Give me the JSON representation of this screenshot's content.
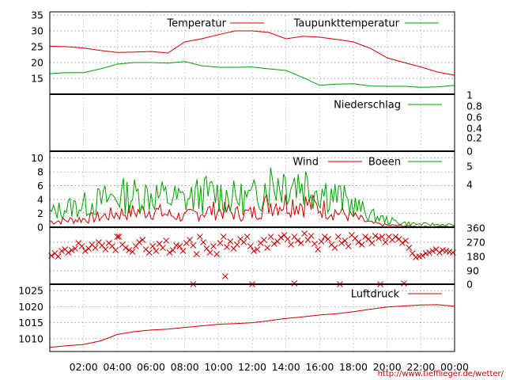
{
  "source_url": "http://www.tiefflieger.de/wetter/",
  "colors": {
    "red": "#cc0000",
    "green": "#00a000",
    "grid": "#777777",
    "frame": "#000000"
  },
  "x_ticks": [
    "02:00",
    "04:00",
    "06:00",
    "08:00",
    "10:00",
    "12:00",
    "14:00",
    "16:00",
    "18:00",
    "20:00",
    "22:00",
    "00:00"
  ],
  "chart_data": [
    {
      "type": "line",
      "x_range": [
        "00:00",
        "24:00"
      ],
      "ylim": [
        10,
        36
      ],
      "y_ticks": [
        15,
        20,
        25,
        30,
        35
      ],
      "grid": true,
      "legend_position": "top",
      "series": [
        {
          "name": "Temperatur",
          "color": "#cc0000",
          "x": [
            0,
            1,
            2,
            3,
            4,
            5,
            6,
            7,
            8,
            9,
            10,
            11,
            12,
            13,
            14,
            15,
            16,
            17,
            18,
            19,
            20,
            21,
            22,
            23,
            24
          ],
          "values": [
            25.2,
            25.0,
            24.6,
            23.8,
            23.2,
            23.3,
            23.5,
            23.0,
            26.5,
            27.5,
            28.8,
            30.0,
            30.0,
            29.5,
            27.5,
            28.3,
            28.0,
            27.3,
            26.5,
            24.5,
            21.5,
            20.0,
            18.6,
            17.0,
            16.0
          ]
        },
        {
          "name": "Taupunkttemperatur",
          "color": "#00a000",
          "x": [
            0,
            1,
            2,
            3,
            4,
            5,
            6,
            7,
            8,
            9,
            10,
            11,
            12,
            13,
            14,
            15,
            16,
            17,
            18,
            19,
            20,
            21,
            22,
            23,
            24
          ],
          "values": [
            16.5,
            16.8,
            16.8,
            18.0,
            19.5,
            20.0,
            20.0,
            19.8,
            20.3,
            19.0,
            18.5,
            18.5,
            18.6,
            18.0,
            17.5,
            15.3,
            12.8,
            13.2,
            13.3,
            12.6,
            12.5,
            12.5,
            12.2,
            12.3,
            12.8
          ]
        }
      ]
    },
    {
      "type": "line",
      "x_range": [
        "00:00",
        "24:00"
      ],
      "ylim": [
        0,
        1
      ],
      "y_ticks": [
        0,
        0.2,
        0.4,
        0.6,
        0.8,
        1
      ],
      "y_tick_labels": [
        "0",
        "0.2",
        "0.4",
        "0.6",
        "0.8",
        "1"
      ],
      "legend_position": "top",
      "series": [
        {
          "name": "Niederschlag",
          "color": "#00a000",
          "x": [
            0,
            24
          ],
          "values": [
            0,
            0
          ]
        }
      ]
    },
    {
      "type": "line",
      "x_range": [
        "00:00",
        "24:00"
      ],
      "ylim": [
        0,
        11
      ],
      "y_ticks": [
        0,
        2,
        4,
        6,
        8,
        10
      ],
      "right_ticks": [
        4,
        5
      ],
      "grid": true,
      "legend_position": "top",
      "series": [
        {
          "name": "Wind",
          "color": "#cc0000",
          "x": [
            0,
            1,
            2,
            3,
            4,
            5,
            6,
            7,
            8,
            9,
            10,
            11,
            12,
            13,
            14,
            15,
            16,
            17,
            18,
            19,
            20,
            21,
            22,
            23,
            24
          ],
          "values": [
            0.8,
            1.0,
            1.2,
            1.5,
            2.0,
            2.2,
            2.5,
            1.8,
            1.5,
            2.2,
            2.5,
            2.0,
            2.0,
            3.5,
            3.5,
            3.5,
            2.8,
            2.2,
            1.5,
            0.6,
            0.3,
            0.2,
            0.1,
            0.1,
            0.1
          ]
        },
        {
          "name": "Boeen",
          "color": "#00a000",
          "x": [
            0,
            1,
            2,
            3,
            4,
            5,
            6,
            7,
            8,
            9,
            10,
            11,
            12,
            13,
            14,
            15,
            16,
            17,
            18,
            19,
            20,
            21,
            22,
            23,
            24
          ],
          "values": [
            2.0,
            2.8,
            3.2,
            3.8,
            4.5,
            4.6,
            4.8,
            4.2,
            4.0,
            4.8,
            4.8,
            4.2,
            4.2,
            6.5,
            6.8,
            6.5,
            5.5,
            4.5,
            3.2,
            1.8,
            1.0,
            0.6,
            0.4,
            0.4,
            0.3
          ]
        }
      ]
    },
    {
      "type": "scatter",
      "x_range": [
        "00:00",
        "24:00"
      ],
      "ylim": [
        0,
        360
      ],
      "right_ticks": [
        0,
        90,
        180,
        270,
        360
      ],
      "grid": true,
      "series": [
        {
          "name": "",
          "color": "#cc0000",
          "x": [
            0.1,
            0.3,
            0.5,
            0.7,
            0.9,
            1.1,
            1.3,
            1.5,
            1.7,
            1.9,
            2.1,
            2.3,
            2.5,
            2.7,
            2.9,
            3.1,
            3.3,
            3.5,
            3.7,
            3.9,
            4.1,
            4.3,
            4.5,
            4.7,
            4.9,
            5.1,
            5.3,
            5.5,
            5.7,
            5.9,
            6.1,
            6.3,
            6.5,
            6.7,
            6.9,
            7.1,
            7.3,
            7.5,
            7.7,
            7.9,
            8.1,
            8.3,
            8.5,
            8.7,
            8.9,
            9.1,
            9.3,
            9.5,
            9.7,
            9.9,
            10.1,
            10.3,
            10.5,
            10.7,
            10.9,
            11.1,
            11.3,
            11.5,
            11.7,
            11.9,
            12.1,
            12.3,
            12.5,
            12.7,
            12.9,
            13.1,
            13.3,
            13.5,
            13.7,
            13.9,
            14.1,
            14.3,
            14.5,
            14.7,
            14.9,
            15.1,
            15.3,
            15.5,
            15.7,
            15.9,
            16.1,
            16.3,
            16.5,
            16.7,
            16.9,
            17.1,
            17.3,
            17.5,
            17.7,
            17.9,
            18.1,
            18.3,
            18.5,
            18.7,
            18.9,
            19.1,
            19.3,
            19.5,
            19.7,
            19.9,
            20.1,
            20.3,
            20.5,
            20.7,
            20.9,
            21.1,
            21.3,
            21.5,
            21.7,
            21.9,
            22.1,
            22.3,
            22.5,
            22.7,
            22.9,
            23.1,
            23.3,
            23.5,
            23.7,
            23.9,
            4.0,
            8.5,
            10.4,
            12.0,
            14.5,
            17.2,
            19.6,
            21.0
          ],
          "values": [
            180,
            195,
            175,
            210,
            220,
            200,
            215,
            225,
            260,
            240,
            210,
            225,
            250,
            230,
            265,
            245,
            220,
            260,
            240,
            215,
            300,
            250,
            230,
            215,
            205,
            240,
            265,
            280,
            220,
            200,
            240,
            210,
            255,
            230,
            275,
            200,
            215,
            245,
            240,
            210,
            260,
            280,
            245,
            190,
            300,
            265,
            225,
            200,
            240,
            190,
            260,
            300,
            235,
            270,
            225,
            250,
            285,
            265,
            300,
            240,
            210,
            220,
            260,
            280,
            230,
            300,
            255,
            270,
            295,
            310,
            285,
            250,
            300,
            275,
            260,
            320,
            280,
            305,
            255,
            220,
            270,
            300,
            285,
            250,
            230,
            300,
            260,
            275,
            240,
            310,
            290,
            265,
            250,
            300,
            285,
            260,
            305,
            290,
            300,
            265,
            300,
            280,
            300,
            285,
            260,
            275,
            230,
            195,
            170,
            175,
            180,
            195,
            200,
            210,
            220,
            200,
            215,
            210,
            205,
            200,
            300,
            0,
            50,
            0,
            5,
            0,
            0,
            5
          ]
        }
      ]
    },
    {
      "type": "line",
      "x_range": [
        "00:00",
        "24:00"
      ],
      "ylim": [
        1006,
        1027
      ],
      "y_ticks": [
        1010,
        1015,
        1020,
        1025
      ],
      "grid": true,
      "legend_position": "top",
      "series": [
        {
          "name": "Luftdruck",
          "color": "#cc0000",
          "x": [
            0,
            1,
            2,
            3,
            4,
            5,
            6,
            7,
            8,
            9,
            10,
            11,
            12,
            13,
            14,
            15,
            16,
            17,
            18,
            19,
            20,
            21,
            22,
            23,
            24
          ],
          "values": [
            1007.3,
            1007.8,
            1008.2,
            1009.3,
            1011.3,
            1012.2,
            1012.7,
            1013.0,
            1013.5,
            1014.0,
            1014.5,
            1014.7,
            1015.0,
            1015.6,
            1016.3,
            1016.8,
            1017.4,
            1017.8,
            1018.4,
            1019.2,
            1019.9,
            1020.2,
            1020.5,
            1020.6,
            1020.1
          ]
        }
      ]
    }
  ]
}
